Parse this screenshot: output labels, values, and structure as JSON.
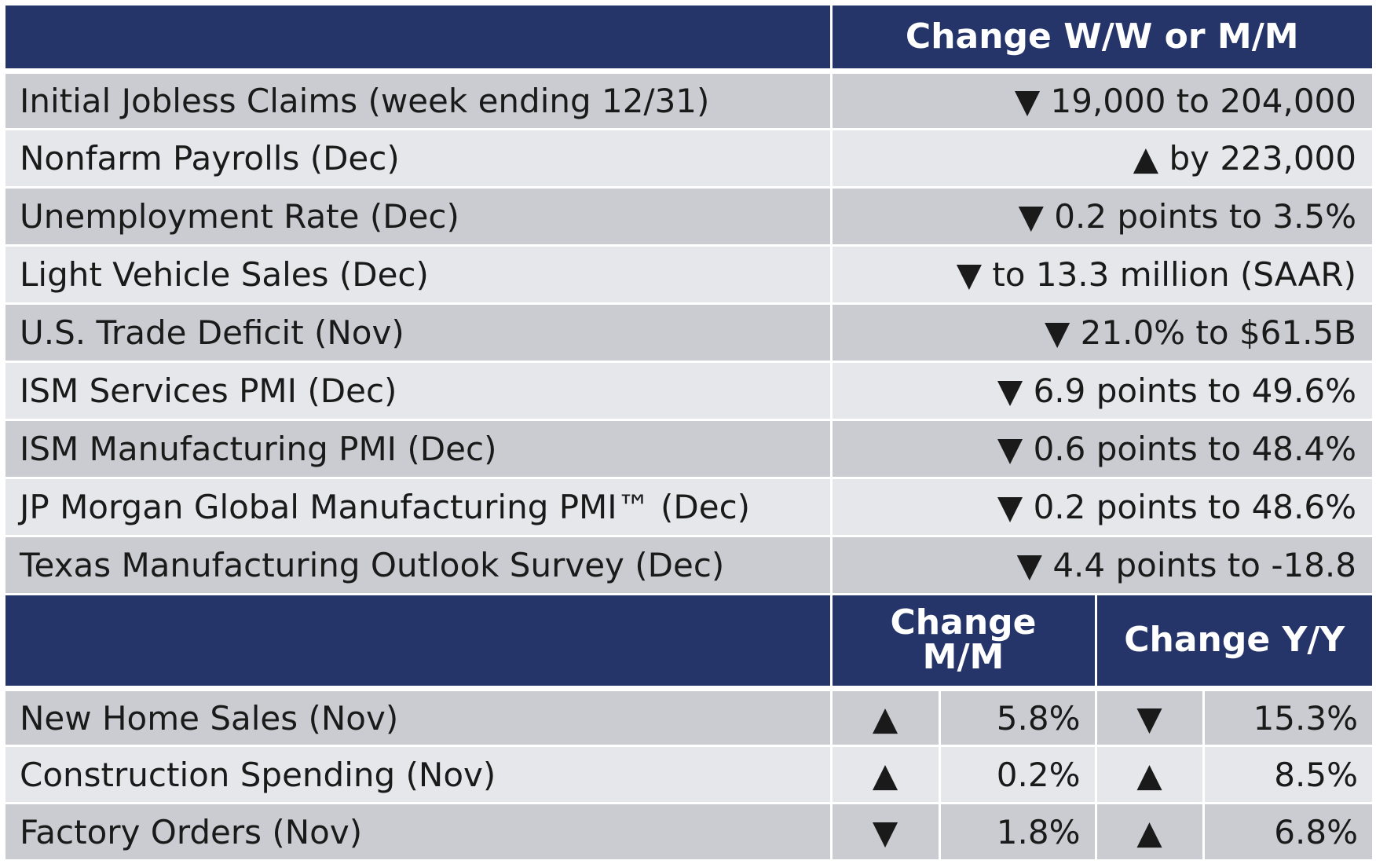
{
  "section1": {
    "header_change": "Change W/W or M/M",
    "rows": [
      {
        "label": "Initial Jobless Claims (week ending 12/31)",
        "value": "▼ 19,000 to 204,000"
      },
      {
        "label": "Nonfarm Payrolls (Dec)",
        "value": "▲ by 223,000"
      },
      {
        "label": "Unemployment Rate (Dec)",
        "value": "▼ 0.2 points to 3.5%"
      },
      {
        "label": "Light Vehicle Sales (Dec)",
        "value": "▼ to 13.3 million (SAAR)"
      },
      {
        "label": "U.S. Trade Deficit (Nov)",
        "value": "▼ 21.0% to $61.5B"
      },
      {
        "label": "ISM Services PMI (Dec)",
        "value": "▼ 6.9 points to 49.6%"
      },
      {
        "label": "ISM Manufacturing PMI (Dec)",
        "value": "▼ 0.6 points to 48.4%"
      },
      {
        "label": "JP Morgan Global Manufacturing PMI™ (Dec)",
        "value": "▼ 0.2 points to 48.6%"
      },
      {
        "label": "Texas Manufacturing Outlook Survey (Dec)",
        "value": "▼ 4.4 points to -18.8"
      }
    ]
  },
  "section2": {
    "header_mm_line1": "Change",
    "header_mm_line2": "M/M",
    "header_yy": "Change Y/Y",
    "rows": [
      {
        "label": "New Home Sales (Nov)",
        "mm_arrow": "▲",
        "mm_value": "5.8%",
        "yy_arrow": "▼",
        "yy_value": "15.3%"
      },
      {
        "label": "Construction Spending (Nov)",
        "mm_arrow": "▲",
        "mm_value": "0.2%",
        "yy_arrow": "▲",
        "yy_value": "8.5%"
      },
      {
        "label": "Factory Orders (Nov)",
        "mm_arrow": "▼",
        "mm_value": "1.8%",
        "yy_arrow": "▲",
        "yy_value": "6.8%"
      }
    ]
  },
  "colors": {
    "header_bg": "#25356a",
    "row_dark": "#cbccd1",
    "row_light": "#e6e7ea"
  }
}
